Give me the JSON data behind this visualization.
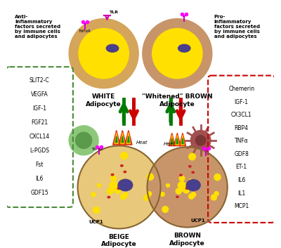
{
  "title": "",
  "bg_color": "#ffffff",
  "anti_inflam_title": "Anti-\ninflammatory\nfactors secreted\nby immune cells\nand adipocytes",
  "anti_inflam_items": [
    "SLIT2-C",
    "VEGFA",
    "IGF-1",
    "FGF21",
    "CXCL14",
    "L-PGDS",
    "Fst",
    "IL6",
    "GDF15"
  ],
  "pro_inflam_title": "Pro-\ninflammatory\nfactors secreted\nby immune cells\nand adipocytes",
  "pro_inflam_items": [
    "Chemerin",
    "IGF-1",
    "CX3CL1",
    "RBP4",
    "TNFα",
    "GDF8",
    "ET-1",
    "IL6",
    "IL1",
    "MCP1"
  ],
  "white_label": "WHITE\nAdipocyte",
  "whitened_label": "\"Whitened\" BROWN\nAdipocyte",
  "beige_label": "BEIGE\nAdipocyte",
  "brown_label": "BROWN\nAdipocyte",
  "ucp1_label": "UCP1",
  "heat_label": "Heat",
  "tlr_label": "TLR",
  "tnfar_label": "TNFαR",
  "colors": {
    "yellow_lipid": "#FFE000",
    "orange_outer": "#D4A55A",
    "tan_outer": "#C8956A",
    "nucleus": "#4A3F8C",
    "green_cell": "#8DC87A",
    "red_arrow": "#CC0000",
    "green_arrow": "#007A00",
    "beige_bg": "#E8C87A",
    "brown_bg": "#C8956A",
    "red_macro": "#A05050",
    "red_lipid": "#CC2222",
    "dashed_green": "#4A8A3A",
    "dashed_red": "#CC0000"
  }
}
